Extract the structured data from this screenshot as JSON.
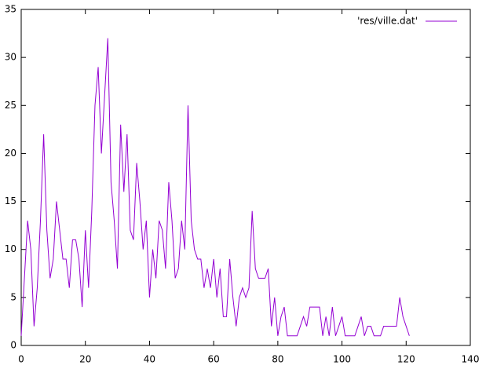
{
  "chart_data": {
    "type": "line",
    "x": [
      0,
      1,
      2,
      3,
      4,
      5,
      6,
      7,
      8,
      9,
      10,
      11,
      12,
      13,
      14,
      15,
      16,
      17,
      18,
      19,
      20,
      21,
      22,
      23,
      24,
      25,
      26,
      27,
      28,
      29,
      30,
      31,
      32,
      33,
      34,
      35,
      36,
      37,
      38,
      39,
      40,
      41,
      42,
      43,
      44,
      45,
      46,
      47,
      48,
      49,
      50,
      51,
      52,
      53,
      54,
      55,
      56,
      57,
      58,
      59,
      60,
      61,
      62,
      63,
      64,
      65,
      66,
      67,
      68,
      69,
      70,
      71,
      72,
      73,
      74,
      75,
      76,
      77,
      78,
      79,
      80,
      81,
      82,
      83,
      84,
      85,
      86,
      87,
      88,
      89,
      90,
      91,
      92,
      93,
      94,
      95,
      96,
      97,
      98,
      99,
      100,
      101,
      102,
      103,
      104,
      105,
      106,
      107,
      108,
      109,
      110,
      111,
      112,
      113,
      114,
      115,
      116,
      117,
      118,
      119,
      120,
      121
    ],
    "series": [
      {
        "name": "'res/ville.dat'",
        "color": "#9400d3",
        "values": [
          1,
          7,
          13,
          10,
          2,
          6,
          13,
          22,
          12,
          7,
          9,
          15,
          12,
          9,
          9,
          6,
          11,
          11,
          9,
          4,
          12,
          6,
          14,
          25,
          29,
          20,
          26,
          32,
          17,
          13,
          8,
          23,
          16,
          22,
          12,
          11,
          19,
          15,
          10,
          13,
          5,
          10,
          7,
          13,
          12,
          8,
          17,
          13,
          7,
          8,
          13,
          10,
          25,
          13,
          10,
          9,
          9,
          6,
          8,
          6,
          9,
          5,
          8,
          3,
          3,
          9,
          5,
          2,
          5,
          6,
          5,
          6,
          14,
          8,
          7,
          7,
          7,
          8,
          2,
          5,
          1,
          3,
          4,
          1,
          1,
          1,
          1,
          2,
          3,
          2,
          4,
          4,
          4,
          4,
          1,
          3,
          1,
          4,
          1,
          2,
          3,
          1,
          1,
          1,
          1,
          2,
          3,
          1,
          2,
          2,
          1,
          1,
          1,
          2,
          2,
          2,
          2,
          2,
          5,
          3,
          2,
          1
        ]
      }
    ],
    "xlim": [
      0,
      140
    ],
    "xticks": [
      0,
      20,
      40,
      60,
      80,
      100,
      120,
      140
    ],
    "ylim": [
      0,
      35
    ],
    "yticks": [
      0,
      5,
      10,
      15,
      20,
      25,
      30,
      35
    ],
    "grid": false,
    "legend": "top-right"
  }
}
